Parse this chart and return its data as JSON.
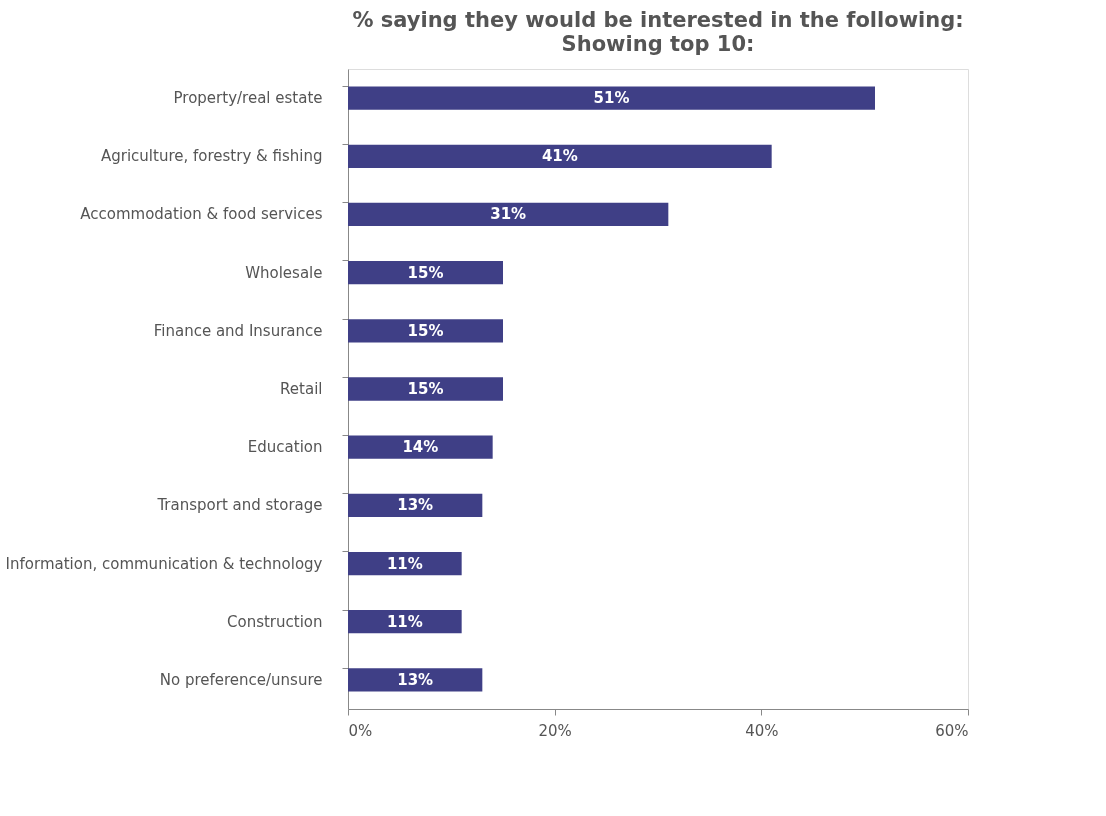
{
  "chart_data": {
    "type": "bar",
    "orientation": "horizontal",
    "title": "% saying they would be interested in the following:",
    "subtitle": "Showing top 10:",
    "categories": [
      "Property/real estate",
      "Agriculture, forestry & fishing",
      "Accommodation & food services",
      "Wholesale",
      "Finance and Insurance",
      "Retail",
      "Education",
      "Transport and storage",
      "Information, communication & technology",
      "Construction",
      "No preference/unsure"
    ],
    "values": [
      51,
      41,
      31,
      15,
      15,
      15,
      14,
      13,
      11,
      11,
      13
    ],
    "value_labels": [
      "51%",
      "41%",
      "31%",
      "15%",
      "15%",
      "15%",
      "14%",
      "13%",
      "11%",
      "11%",
      "13%"
    ],
    "color": "#3f3f86",
    "xlim": [
      0,
      60
    ],
    "xticks": [
      {
        "value": 0,
        "label": "0%"
      },
      {
        "value": 20,
        "label": "20%"
      },
      {
        "value": 40,
        "label": "40%"
      },
      {
        "value": 60,
        "label": "60%"
      }
    ],
    "grid": false
  }
}
